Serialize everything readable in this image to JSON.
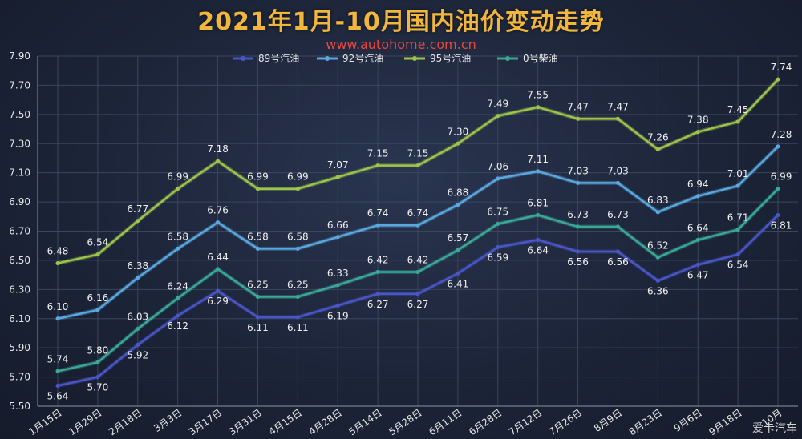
{
  "title": "2021年1月-10月国内油价变动走势",
  "subtitle": "www.autohome.com.cn",
  "watermark": "爱卡汽车",
  "chart_data": {
    "type": "line",
    "categories": [
      "1月15日",
      "1月29日",
      "2月18日",
      "3月3日",
      "3月17日",
      "3月31日",
      "4月15日",
      "4月28日",
      "5月14日",
      "5月28日",
      "6月11日",
      "6月28日",
      "7月12日",
      "7月26日",
      "8月9日",
      "8月23日",
      "9月6日",
      "9月18日",
      "10月"
    ],
    "ylim": [
      5.5,
      7.9
    ],
    "yticks": [
      "5.50",
      "5.70",
      "5.90",
      "6.10",
      "6.30",
      "6.50",
      "6.70",
      "6.90",
      "7.10",
      "7.30",
      "7.50",
      "7.70",
      "7.90"
    ],
    "legend_position": "top",
    "series": [
      {
        "name": "89号汽油",
        "color": "#4a56c8",
        "label_pos": "below",
        "values": [
          5.64,
          5.7,
          5.92,
          6.12,
          6.29,
          6.11,
          6.11,
          6.19,
          6.27,
          6.27,
          6.41,
          6.59,
          6.64,
          6.56,
          6.56,
          6.36,
          6.47,
          6.54,
          6.81
        ]
      },
      {
        "name": "92号汽油",
        "color": "#5aa8e0",
        "label_pos": "above",
        "values": [
          6.1,
          6.16,
          6.38,
          6.58,
          6.76,
          6.58,
          6.58,
          6.66,
          6.74,
          6.74,
          6.88,
          7.06,
          7.11,
          7.03,
          7.03,
          6.83,
          6.94,
          7.01,
          7.28
        ]
      },
      {
        "name": "95号汽油",
        "color": "#9ec44a",
        "label_pos": "above",
        "values": [
          6.48,
          6.54,
          6.77,
          6.99,
          7.18,
          6.99,
          6.99,
          7.07,
          7.15,
          7.15,
          7.3,
          7.49,
          7.55,
          7.47,
          7.47,
          7.26,
          7.38,
          7.45,
          7.74
        ]
      },
      {
        "name": "0号柴油",
        "color": "#3aa898",
        "label_pos": "above",
        "values": [
          5.74,
          5.8,
          6.03,
          6.24,
          6.44,
          6.25,
          6.25,
          6.33,
          6.42,
          6.42,
          6.57,
          6.75,
          6.81,
          6.73,
          6.73,
          6.52,
          6.64,
          6.71,
          6.99
        ]
      }
    ]
  }
}
